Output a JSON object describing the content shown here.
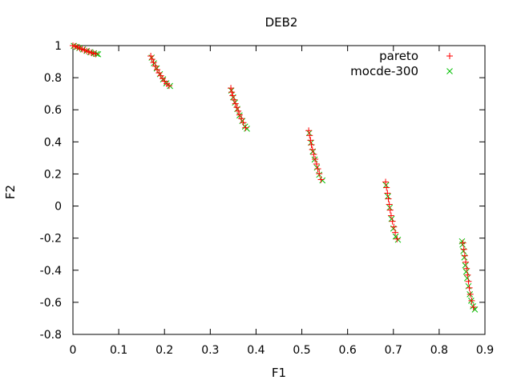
{
  "chart_data": {
    "type": "scatter",
    "title": "DEB2",
    "xlabel": "F1",
    "ylabel": "F2",
    "xlim": [
      0,
      0.9
    ],
    "ylim": [
      -0.8,
      1
    ],
    "x_ticks": [
      "0",
      "0.1",
      "0.2",
      "0.3",
      "0.4",
      "0.5",
      "0.6",
      "0.7",
      "0.8",
      "0.9"
    ],
    "y_ticks": [
      "1",
      "0.8",
      "0.6",
      "0.4",
      "0.2",
      "0",
      "-0.2",
      "-0.4",
      "-0.6",
      "-0.8"
    ],
    "grid": false,
    "legend_position": "top-right",
    "series": [
      {
        "name": "pareto",
        "marker": "plus",
        "color": "#ff0000",
        "points": [
          [
            0.0,
            1.0
          ],
          [
            0.005,
            0.996
          ],
          [
            0.01,
            0.99
          ],
          [
            0.015,
            0.984
          ],
          [
            0.02,
            0.978
          ],
          [
            0.025,
            0.972
          ],
          [
            0.03,
            0.966
          ],
          [
            0.035,
            0.961
          ],
          [
            0.04,
            0.956
          ],
          [
            0.045,
            0.951
          ],
          [
            0.05,
            0.948
          ],
          [
            0.17,
            0.935
          ],
          [
            0.173,
            0.915
          ],
          [
            0.176,
            0.895
          ],
          [
            0.18,
            0.872
          ],
          [
            0.184,
            0.85
          ],
          [
            0.188,
            0.83
          ],
          [
            0.192,
            0.812
          ],
          [
            0.196,
            0.795
          ],
          [
            0.2,
            0.778
          ],
          [
            0.205,
            0.762
          ],
          [
            0.21,
            0.75
          ],
          [
            0.345,
            0.735
          ],
          [
            0.347,
            0.71
          ],
          [
            0.349,
            0.688
          ],
          [
            0.352,
            0.662
          ],
          [
            0.355,
            0.638
          ],
          [
            0.358,
            0.615
          ],
          [
            0.361,
            0.592
          ],
          [
            0.364,
            0.568
          ],
          [
            0.368,
            0.545
          ],
          [
            0.372,
            0.52
          ],
          [
            0.377,
            0.488
          ],
          [
            0.515,
            0.47
          ],
          [
            0.517,
            0.44
          ],
          [
            0.519,
            0.41
          ],
          [
            0.521,
            0.382
          ],
          [
            0.523,
            0.352
          ],
          [
            0.526,
            0.322
          ],
          [
            0.529,
            0.292
          ],
          [
            0.532,
            0.262
          ],
          [
            0.535,
            0.232
          ],
          [
            0.538,
            0.202
          ],
          [
            0.542,
            0.165
          ],
          [
            0.683,
            0.15
          ],
          [
            0.685,
            0.115
          ],
          [
            0.687,
            0.08
          ],
          [
            0.689,
            0.045
          ],
          [
            0.691,
            0.01
          ],
          [
            0.693,
            -0.025
          ],
          [
            0.695,
            -0.06
          ],
          [
            0.698,
            -0.095
          ],
          [
            0.701,
            -0.13
          ],
          [
            0.704,
            -0.165
          ],
          [
            0.708,
            -0.205
          ],
          [
            0.852,
            -0.23
          ],
          [
            0.854,
            -0.27
          ],
          [
            0.856,
            -0.31
          ],
          [
            0.858,
            -0.35
          ],
          [
            0.86,
            -0.39
          ],
          [
            0.862,
            -0.43
          ],
          [
            0.864,
            -0.47
          ],
          [
            0.866,
            -0.51
          ],
          [
            0.868,
            -0.55
          ],
          [
            0.871,
            -0.59
          ],
          [
            0.875,
            -0.63
          ]
        ]
      },
      {
        "name": "mocde-300",
        "marker": "cross",
        "color": "#00c000",
        "points": [
          [
            0.002,
            0.998
          ],
          [
            0.008,
            0.992
          ],
          [
            0.014,
            0.985
          ],
          [
            0.022,
            0.976
          ],
          [
            0.03,
            0.967
          ],
          [
            0.038,
            0.959
          ],
          [
            0.046,
            0.952
          ],
          [
            0.052,
            0.948
          ],
          [
            0.055,
            0.946
          ],
          [
            0.172,
            0.925
          ],
          [
            0.177,
            0.89
          ],
          [
            0.183,
            0.858
          ],
          [
            0.19,
            0.822
          ],
          [
            0.197,
            0.79
          ],
          [
            0.204,
            0.765
          ],
          [
            0.212,
            0.748
          ],
          [
            0.346,
            0.72
          ],
          [
            0.35,
            0.678
          ],
          [
            0.354,
            0.645
          ],
          [
            0.359,
            0.605
          ],
          [
            0.364,
            0.565
          ],
          [
            0.37,
            0.53
          ],
          [
            0.376,
            0.495
          ],
          [
            0.38,
            0.482
          ],
          [
            0.516,
            0.455
          ],
          [
            0.52,
            0.395
          ],
          [
            0.524,
            0.34
          ],
          [
            0.528,
            0.29
          ],
          [
            0.533,
            0.24
          ],
          [
            0.538,
            0.195
          ],
          [
            0.545,
            0.16
          ],
          [
            0.684,
            0.13
          ],
          [
            0.688,
            0.06
          ],
          [
            0.692,
            -0.01
          ],
          [
            0.696,
            -0.08
          ],
          [
            0.7,
            -0.14
          ],
          [
            0.705,
            -0.19
          ],
          [
            0.71,
            -0.21
          ],
          [
            0.85,
            -0.22
          ],
          [
            0.851,
            -0.24
          ],
          [
            0.853,
            -0.28
          ],
          [
            0.855,
            -0.32
          ],
          [
            0.857,
            -0.37
          ],
          [
            0.859,
            -0.41
          ],
          [
            0.861,
            -0.45
          ],
          [
            0.864,
            -0.5
          ],
          [
            0.867,
            -0.55
          ],
          [
            0.87,
            -0.59
          ],
          [
            0.874,
            -0.625
          ],
          [
            0.878,
            -0.645
          ]
        ]
      }
    ]
  }
}
